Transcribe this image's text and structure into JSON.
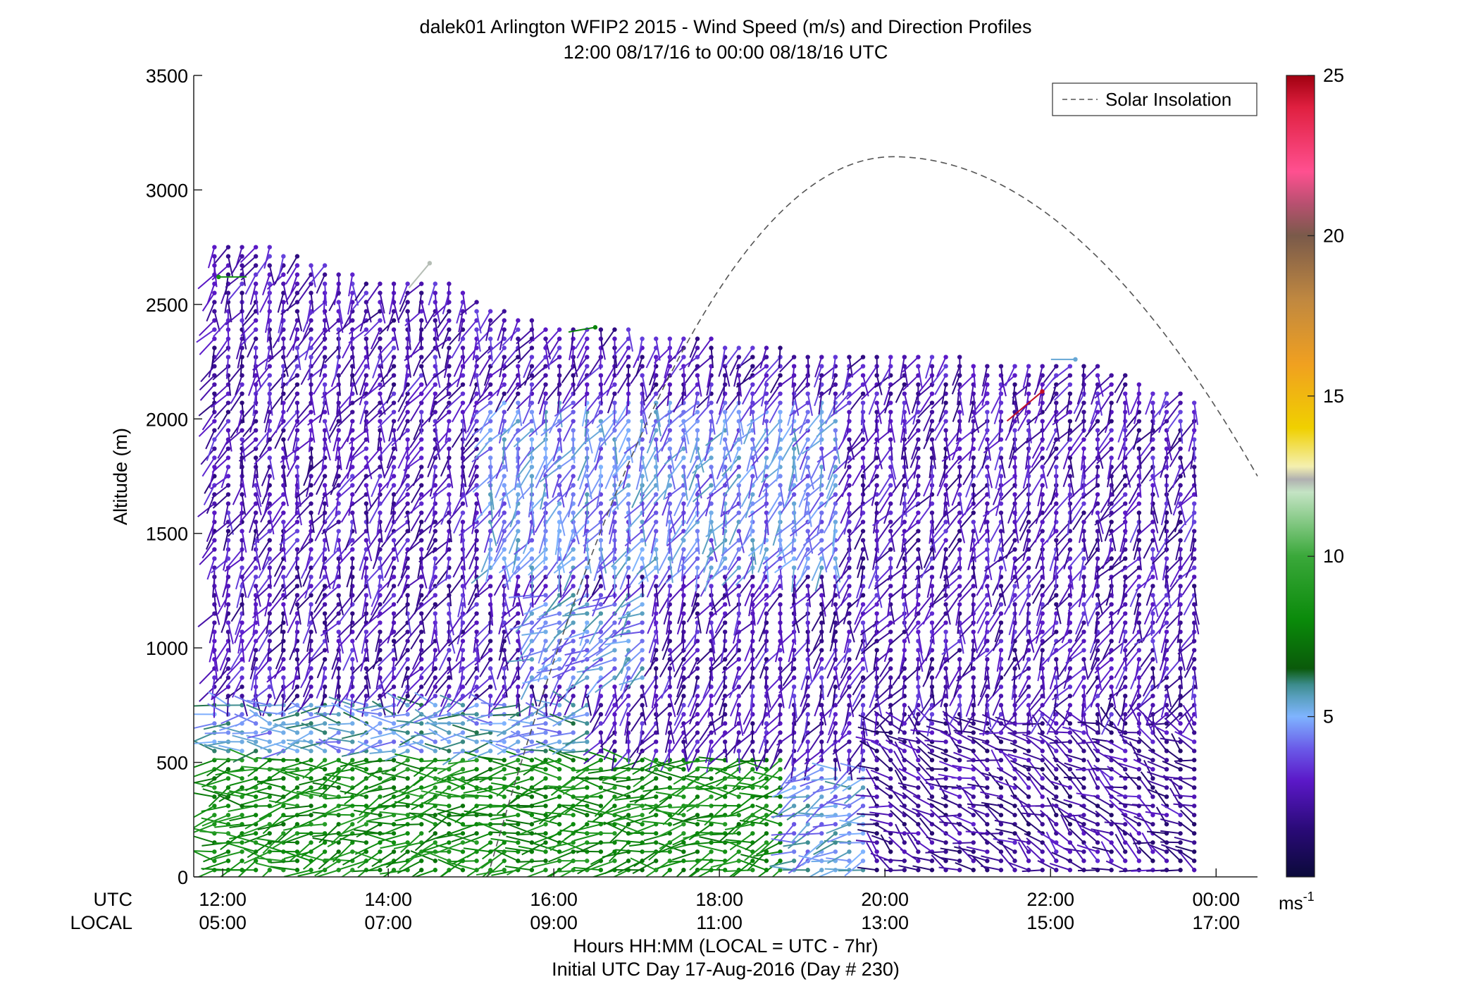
{
  "chart_data": {
    "type": "scatter",
    "subtype": "wind-barb-profile",
    "title": "dalek01 Arlington WFIP2 2015 - Wind Speed (m/s) and Direction Profiles",
    "subtitle": "12:00 08/17/16 to 00:00 08/18/16  UTC",
    "ylabel": "Altitude (m)",
    "xlabel": "Hours HH:MM  (LOCAL = UTC - 7hr)",
    "xlabel2": "Initial UTC Day 17-Aug-2016 (Day # 230)",
    "xlim_hours_utc": [
      11.65,
      24.5
    ],
    "ylim": [
      0,
      3500
    ],
    "y_ticks": [
      0,
      500,
      1000,
      1500,
      2000,
      2500,
      3000,
      3500
    ],
    "y_tick_labels": [
      "0",
      "500",
      "1000",
      "1500",
      "2000",
      "2500",
      "3000",
      "3500"
    ],
    "x_tick_hours": [
      12,
      14,
      16,
      18,
      20,
      22,
      24
    ],
    "x_row_label_utc": "UTC",
    "x_row_label_local": "LOCAL",
    "x_tick_labels_utc": [
      "12:00",
      "14:00",
      "16:00",
      "18:00",
      "20:00",
      "22:00",
      "00:00"
    ],
    "x_tick_labels_local": [
      "05:00",
      "07:00",
      "09:00",
      "11:00",
      "13:00",
      "15:00",
      "17:00"
    ],
    "legend": {
      "label": "Solar Insolation",
      "placement": "top-right",
      "line_style": "dashed",
      "color": "#555555"
    },
    "solar_insolation_curve": {
      "start_hour": 15.2,
      "start_alt": 0,
      "peak_hour": 20.1,
      "peak_alt": 3145,
      "end_hour": 24.5,
      "end_alt": 1750
    },
    "colorbar": {
      "ticks": [
        5,
        10,
        15,
        20,
        25
      ],
      "tick_labels": [
        "5",
        "10",
        "15",
        "20",
        "25"
      ],
      "range": [
        0,
        25
      ],
      "unit_label": "ms",
      "unit_exponent": "-1",
      "stops": [
        {
          "v": 0,
          "c": "#0b0a3a"
        },
        {
          "v": 1.5,
          "c": "#2a0a78"
        },
        {
          "v": 3,
          "c": "#5b18c8"
        },
        {
          "v": 4,
          "c": "#6a5ae8"
        },
        {
          "v": 5,
          "c": "#7fb4ff"
        },
        {
          "v": 5.6,
          "c": "#5aa0c0"
        },
        {
          "v": 6,
          "c": "#3c8c8c"
        },
        {
          "v": 6.5,
          "c": "#0a5a0a"
        },
        {
          "v": 8,
          "c": "#0a8a0a"
        },
        {
          "v": 10,
          "c": "#3aa83a"
        },
        {
          "v": 12,
          "c": "#c4e4c4"
        },
        {
          "v": 12.4,
          "c": "#b0b0b0"
        },
        {
          "v": 12.8,
          "c": "#f4f0b0"
        },
        {
          "v": 14,
          "c": "#f0d000"
        },
        {
          "v": 16,
          "c": "#f0a020"
        },
        {
          "v": 18,
          "c": "#c08840"
        },
        {
          "v": 20,
          "c": "#7a5a4a"
        },
        {
          "v": 21,
          "c": "#b85070"
        },
        {
          "v": 22,
          "c": "#ff5090"
        },
        {
          "v": 24,
          "c": "#e02040"
        },
        {
          "v": 25,
          "c": "#a00010"
        }
      ]
    },
    "profiles": {
      "time_start_hour": 11.9,
      "time_end_hour": 23.9,
      "time_step_hour": 0.1667,
      "alt_start_m": 30,
      "alt_step_m": 40,
      "max_alt_by_hour": [
        [
          11.9,
          2760
        ],
        [
          12.5,
          2760
        ],
        [
          13.0,
          2700
        ],
        [
          13.5,
          2640
        ],
        [
          14.0,
          2600
        ],
        [
          14.6,
          2620
        ],
        [
          15.0,
          2560
        ],
        [
          15.5,
          2450
        ],
        [
          16.2,
          2400
        ],
        [
          17.0,
          2390
        ],
        [
          18.0,
          2350
        ],
        [
          19.0,
          2300
        ],
        [
          20.0,
          2280
        ],
        [
          21.0,
          2270
        ],
        [
          22.0,
          2260
        ],
        [
          22.6,
          2240
        ],
        [
          23.2,
          2150
        ],
        [
          23.6,
          2120
        ],
        [
          23.9,
          2050
        ]
      ],
      "speed_regimes": [
        {
          "t0": 11.9,
          "t1": 18.8,
          "a0": 0,
          "a1": 520,
          "speed": 8.2,
          "dir_deg": 260
        },
        {
          "t0": 17.0,
          "t1": 19.8,
          "a0": 0,
          "a1": 480,
          "speed": 5.0,
          "dir_deg": 250
        },
        {
          "t0": 11.9,
          "t1": 16.5,
          "a0": 520,
          "a1": 760,
          "speed": 5.2,
          "dir_deg": 270
        },
        {
          "t0": 15.2,
          "t1": 19.5,
          "a0": 1350,
          "a1": 2100,
          "speed": 4.6,
          "dir_deg": 200
        },
        {
          "t0": 15.6,
          "t1": 17.2,
          "a0": 850,
          "a1": 1250,
          "speed": 4.8,
          "dir_deg": 230
        },
        {
          "t0": 19.8,
          "t1": 24.0,
          "a0": 0,
          "a1": 700,
          "speed": 2.2,
          "dir_deg": 300
        },
        {
          "t0": 11.9,
          "t1": 24.0,
          "a0": 0,
          "a1": 3500,
          "speed": 2.6,
          "dir_deg": 200
        }
      ]
    },
    "annotations": [
      {
        "hour": 11.95,
        "alt": 2620,
        "speed": 8.5,
        "dir_deg": 90
      },
      {
        "hour": 16.5,
        "alt": 2400,
        "speed": 7.8,
        "dir_deg": 260
      },
      {
        "hour": 21.9,
        "alt": 2120,
        "speed": 24.5,
        "dir_deg": 230
      },
      {
        "hour": 22.3,
        "alt": 2260,
        "speed": 5.4,
        "dir_deg": 270
      },
      {
        "hour": 14.5,
        "alt": 2680,
        "speed": 12.3,
        "dir_deg": 220
      }
    ]
  }
}
